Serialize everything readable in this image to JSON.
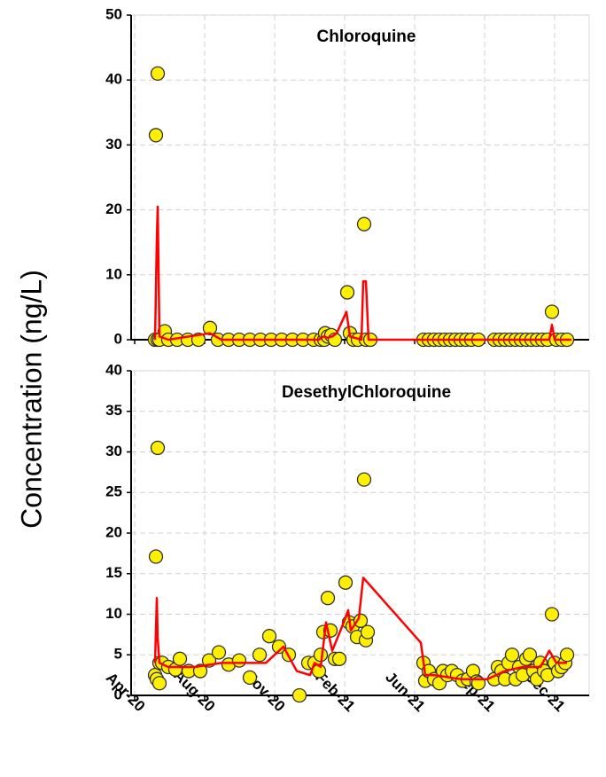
{
  "ylabel": "Concentration (ng/L)",
  "x_axis": {
    "xlim": [
      -4,
      513
    ],
    "xticks": [
      {
        "value": 0,
        "label": "Apr-20"
      },
      {
        "value": 79,
        "label": "Aug-20"
      },
      {
        "value": 158,
        "label": "Nov-20"
      },
      {
        "value": 237,
        "label": "Feb-21"
      },
      {
        "value": 316,
        "label": "Jun-21"
      },
      {
        "value": 395,
        "label": "Sep-21"
      },
      {
        "value": 474,
        "label": "Dec-21"
      }
    ],
    "grid": true
  },
  "chart_data": [
    {
      "type": "scatter",
      "title": "Chloroquine",
      "ylim": [
        0,
        50
      ],
      "yticks": [
        0,
        10,
        20,
        30,
        40,
        50
      ],
      "grid": true,
      "series": [
        {
          "mode": "markers",
          "color": "#ffef00",
          "x": [
            23,
            24,
            26,
            26,
            28,
            34,
            38,
            48,
            60,
            72,
            85,
            94,
            106,
            118,
            130,
            142,
            154,
            166,
            178,
            190,
            202,
            210,
            214,
            215,
            218,
            222,
            226,
            240,
            243,
            247,
            252,
            259,
            261,
            266,
            326,
            332,
            338,
            344,
            350,
            356,
            362,
            368,
            374,
            380,
            388,
            406,
            412,
            418,
            424,
            430,
            436,
            442,
            448,
            454,
            460,
            466,
            471,
            476,
            482,
            488
          ],
          "values": [
            0,
            31.5,
            41,
            0,
            0,
            1.3,
            0,
            0,
            0,
            0,
            1.8,
            0,
            0,
            0,
            0,
            0,
            0,
            0,
            0,
            0,
            0,
            0,
            0,
            1,
            0.5,
            0.7,
            0,
            7.3,
            1,
            0,
            0,
            17.8,
            0,
            0,
            0,
            0,
            0,
            0,
            0,
            0,
            0,
            0,
            0,
            0,
            0,
            0,
            0,
            0,
            0,
            0,
            0,
            0,
            0,
            0,
            0,
            0,
            4.3,
            0,
            0,
            0
          ]
        },
        {
          "mode": "line",
          "color": "#ff0000",
          "x": [
            23,
            25,
            26,
            28,
            38,
            85,
            98,
            208,
            213,
            218,
            223,
            228,
            239,
            243,
            256,
            258,
            261,
            264,
            468,
            471,
            474,
            493
          ],
          "values": [
            0,
            15.5,
            20.5,
            0.5,
            0,
            1,
            0,
            0,
            0.5,
            0.3,
            0.5,
            1,
            4.3,
            0.5,
            0,
            9,
            9,
            0,
            0,
            2.3,
            0,
            0
          ]
        }
      ]
    },
    {
      "type": "scatter",
      "title": "DesethylChloroquine",
      "ylim": [
        0,
        40
      ],
      "yticks": [
        0,
        5,
        10,
        15,
        20,
        25,
        30,
        35,
        40
      ],
      "grid": true,
      "series": [
        {
          "mode": "markers",
          "color": "#ffef00",
          "x": [
            24,
            26,
            23,
            25,
            28,
            28,
            31,
            38,
            46,
            51,
            61,
            74,
            84,
            95,
            106,
            118,
            130,
            141,
            152,
            163,
            174,
            186,
            196,
            203,
            208,
            210,
            213,
            218,
            221,
            226,
            231,
            238,
            242,
            246,
            251,
            255,
            259,
            261,
            263,
            326,
            328,
            332,
            338,
            344,
            348,
            353,
            358,
            364,
            370,
            376,
            382,
            386,
            388,
            406,
            410,
            414,
            418,
            422,
            426,
            430,
            434,
            438,
            442,
            446,
            450,
            454,
            458,
            462,
            466,
            471,
            474,
            478,
            482,
            486,
            488
          ],
          "values": [
            17.1,
            30.5,
            2.5,
            2,
            1.5,
            4,
            4,
            3.5,
            3.2,
            4.5,
            3,
            3,
            4.3,
            5.3,
            3.8,
            4.3,
            2.2,
            5,
            7.3,
            6,
            5,
            0,
            4,
            4,
            3,
            5,
            7.8,
            12,
            8,
            4.5,
            4.5,
            13.9,
            9,
            8.5,
            7.2,
            9.2,
            26.6,
            6.8,
            7.8,
            4,
            1.8,
            3,
            2,
            1.5,
            3,
            2.5,
            3,
            2.5,
            1.8,
            2,
            3,
            1.7,
            1.5,
            2,
            3.5,
            3,
            2,
            4,
            5,
            2,
            3.5,
            2.5,
            4.5,
            5,
            3,
            2,
            4,
            3,
            2.5,
            10,
            4,
            3,
            3.5,
            4,
            5
          ]
        },
        {
          "mode": "line",
          "color": "#ff0000",
          "x": [
            23,
            25,
            26,
            28,
            38,
            68,
            98,
            148,
            168,
            183,
            198,
            203,
            210,
            216,
            223,
            236,
            241,
            244,
            253,
            258,
            323,
            328,
            338,
            368,
            398,
            418,
            438,
            458,
            468,
            476,
            488
          ],
          "values": [
            4,
            12,
            7,
            4,
            3.5,
            3.5,
            4,
            4,
            6,
            3,
            2.5,
            4,
            3.5,
            9,
            5.5,
            9,
            10.5,
            8,
            9.5,
            14.5,
            6.5,
            2.5,
            2.5,
            2,
            2,
            3,
            3.5,
            3.5,
            5.5,
            4,
            4
          ]
        }
      ]
    }
  ]
}
